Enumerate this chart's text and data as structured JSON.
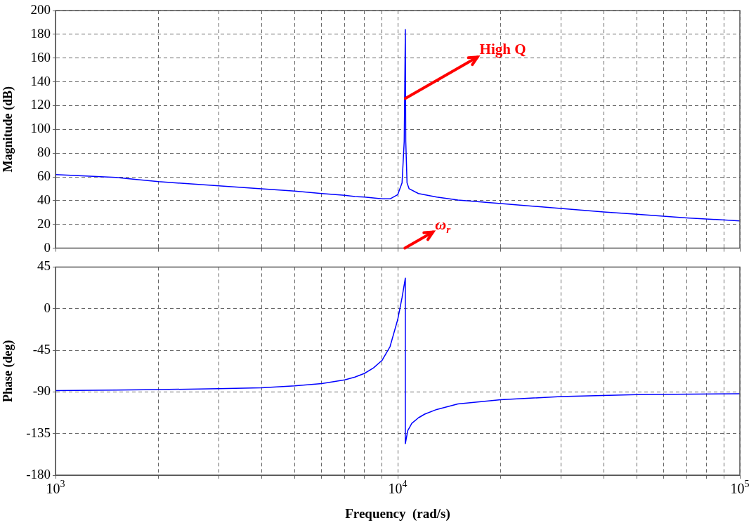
{
  "chart_data": [
    {
      "type": "line",
      "ylabel": "Magnitude (dB)",
      "log": "x",
      "grid": true,
      "tick_labels": "y",
      "legend": false,
      "marker": "none",
      "line_style": "solid",
      "xlim": [
        1000,
        100000
      ],
      "xticks": [
        {
          "value": 1000,
          "label": null
        },
        {
          "value": 2000,
          "label": null
        },
        {
          "value": 3000,
          "label": null
        },
        {
          "value": 4000,
          "label": null
        },
        {
          "value": 5000,
          "label": null
        },
        {
          "value": 6000,
          "label": null
        },
        {
          "value": 7000,
          "label": null
        },
        {
          "value": 8000,
          "label": null
        },
        {
          "value": 9000,
          "label": null
        },
        {
          "value": 10000,
          "label": null
        },
        {
          "value": 20000,
          "label": null
        },
        {
          "value": 30000,
          "label": null
        },
        {
          "value": 40000,
          "label": null
        },
        {
          "value": 50000,
          "label": null
        },
        {
          "value": 60000,
          "label": null
        },
        {
          "value": 70000,
          "label": null
        },
        {
          "value": 80000,
          "label": null
        },
        {
          "value": 90000,
          "label": null
        },
        {
          "value": 100000,
          "label": null
        }
      ],
      "ylim": [
        0,
        200
      ],
      "yticks": [
        0,
        20,
        40,
        60,
        80,
        100,
        120,
        140,
        160,
        180,
        200
      ],
      "series": [
        {
          "color": "#0000ff",
          "x": [
            1000,
            1500,
            2000,
            3000,
            4000,
            5000,
            6000,
            7000,
            7500,
            8000,
            9000,
            9500,
            10000,
            10300,
            10450,
            10530,
            10560,
            10650,
            10800,
            11500,
            13000,
            15000,
            20000,
            30000,
            40000,
            50000,
            70000,
            100000
          ],
          "values": [
            62,
            59.5,
            56,
            52.5,
            50,
            48,
            46,
            44.5,
            43.5,
            43,
            41.5,
            41.5,
            45,
            55,
            90,
            184,
            90,
            55,
            50,
            46,
            43,
            40.5,
            37.5,
            33.5,
            30.5,
            28.5,
            25.5,
            23
          ]
        }
      ],
      "annotations": [
        {
          "text": "High Q",
          "x": 10530,
          "y": 126
        },
        "ω$_{r}$"
      ]
    },
    {
      "type": "line",
      "xlabel": "Frequency  (rad/s)",
      "ylabel": "Phase (deg)",
      "log": "x",
      "grid": true,
      "legend": false,
      "marker": "none",
      "line_style": "solid",
      "xlim": [
        1000,
        100000
      ],
      "xticks": [
        {
          "value": 1000,
          "label": "10$^{3}$"
        },
        {
          "value": 2000,
          "label": null
        },
        {
          "value": 3000,
          "label": null
        },
        {
          "value": 4000,
          "label": null
        },
        {
          "value": 5000,
          "label": null
        },
        {
          "value": 6000,
          "label": null
        },
        {
          "value": 7000,
          "label": null
        },
        {
          "value": 8000,
          "label": null
        },
        {
          "value": 9000,
          "label": null
        },
        {
          "value": 10000,
          "label": "10$^{4}$"
        },
        {
          "value": 20000,
          "label": null
        },
        {
          "value": 30000,
          "label": null
        },
        {
          "value": 40000,
          "label": null
        },
        {
          "value": 50000,
          "label": null
        },
        {
          "value": 60000,
          "label": null
        },
        {
          "value": 70000,
          "label": null
        },
        {
          "value": 80000,
          "label": null
        },
        {
          "value": 90000,
          "label": null
        },
        {
          "value": 100000,
          "label": "10$^{5}$"
        }
      ],
      "ylim": [
        -180,
        45
      ],
      "yticks": [
        -180,
        -135,
        -90,
        -45,
        0,
        45
      ],
      "series": [
        {
          "color": "#0000ff",
          "x": [
            1000,
            1500,
            2000,
            3000,
            4000,
            5000,
            6000,
            7000,
            7500,
            8000,
            8500,
            9000,
            9500,
            10000,
            10300,
            10530,
            10530,
            10700,
            11000,
            11500,
            12000,
            13000,
            15000,
            20000,
            30000,
            50000,
            100000
          ],
          "values": [
            -88.5,
            -88,
            -87.5,
            -86.5,
            -85.5,
            -83.5,
            -81,
            -77,
            -74,
            -70,
            -64,
            -56,
            -41,
            -12,
            12,
            33,
            -146,
            -132,
            -124,
            -118,
            -114,
            -109,
            -103,
            -98.5,
            -95,
            -93,
            -92
          ]
        }
      ]
    }
  ]
}
